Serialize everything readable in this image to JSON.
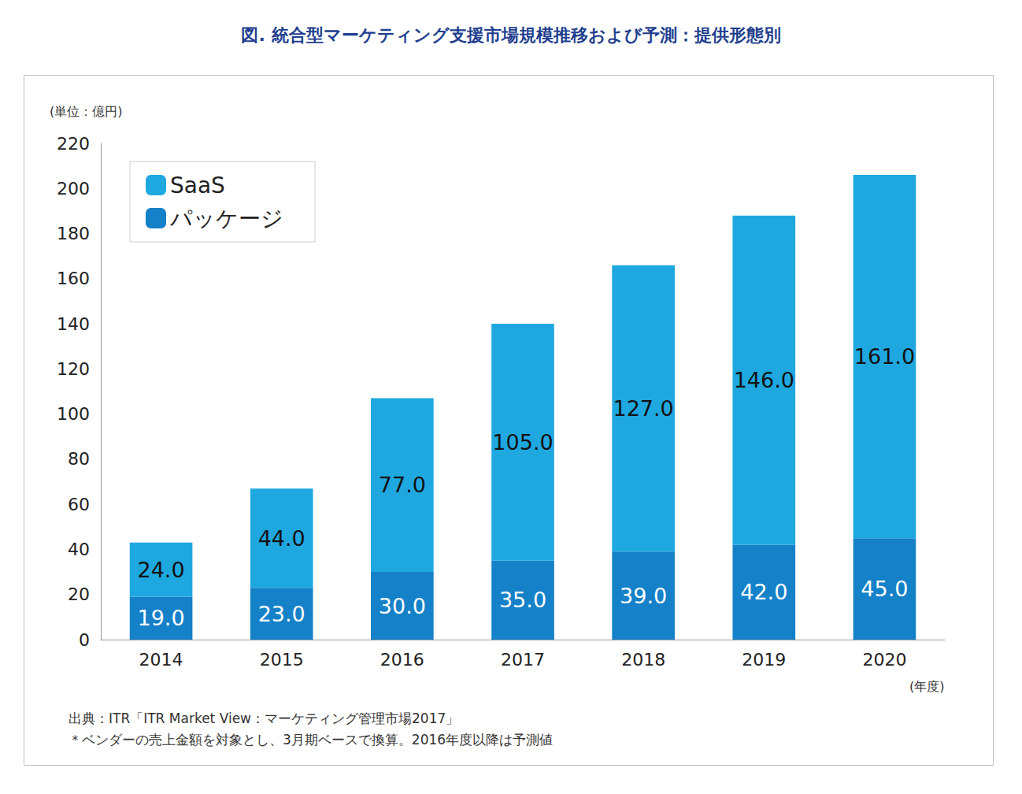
{
  "chart_data": {
    "type": "bar",
    "title": "図. 統合型マーケティング支援市場規模推移および予測：提供形態別",
    "y_label": "(単位：億円)",
    "x_label": "(年度)",
    "annotations": [
      "出典：ITR「ITR Market View：マーケティング管理市場2017」",
      "＊ベンダーの売上金額を対象とし、3月期ベースで換算。2016年度以降は予測値"
    ],
    "categories": [
      "2014",
      "2015",
      "2016",
      "2017",
      "2018",
      "2019",
      "2020"
    ],
    "series": [
      {
        "name": "パッケージ",
        "color": "#1581c8",
        "values": [
          19,
          23,
          30,
          35,
          39,
          42,
          45
        ],
        "value_labels": [
          "19.0",
          "23.0",
          "30.0",
          "35.0",
          "39.0",
          "42.0",
          "45.0"
        ]
      },
      {
        "name": "SaaS",
        "color": "#1fa8e0",
        "values": [
          24,
          44,
          77,
          105,
          127,
          146,
          161
        ],
        "value_labels": [
          "24.0",
          "44.0",
          "77.0",
          "105.0",
          "127.0",
          "146.0",
          "161.0"
        ]
      }
    ],
    "stacked": true,
    "data_labels": true,
    "ylim": [
      0,
      220
    ],
    "yticks": [
      0,
      20,
      40,
      60,
      80,
      100,
      120,
      140,
      160,
      180,
      200,
      220
    ],
    "grid": false,
    "legend": "upper left"
  }
}
